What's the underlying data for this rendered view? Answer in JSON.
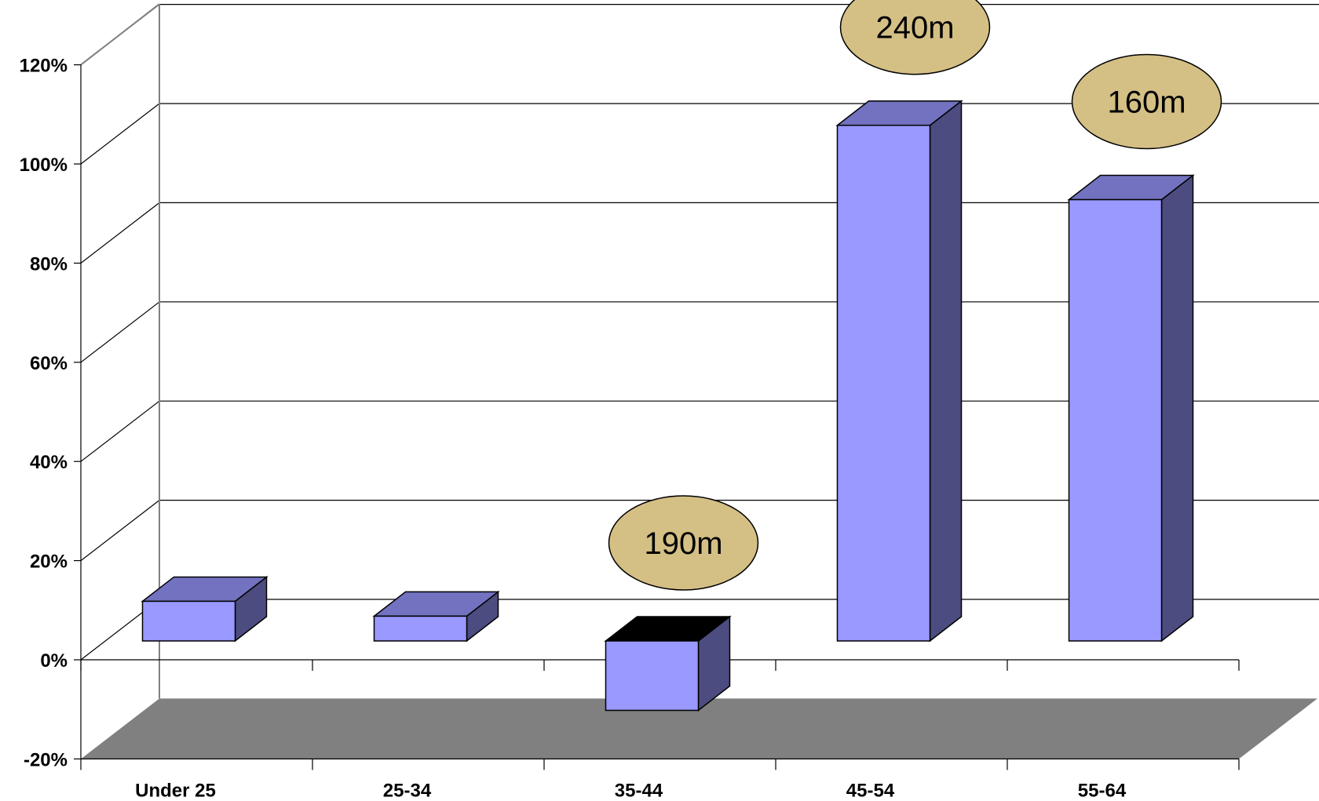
{
  "chart_data": {
    "type": "bar",
    "categories": [
      "Under 25",
      "25-34",
      "35-44",
      "45-54",
      "55-64"
    ],
    "values": [
      8,
      5,
      -14,
      104,
      89
    ],
    "callouts": [
      {
        "category_index": 2,
        "label": "190m"
      },
      {
        "category_index": 3,
        "label": "240m"
      },
      {
        "category_index": 4,
        "label": "160m"
      }
    ],
    "title": "",
    "xlabel": "",
    "ylabel": "",
    "ylim": [
      -20,
      120
    ],
    "yticks": [
      -20,
      0,
      20,
      40,
      60,
      80,
      100,
      120
    ],
    "ytick_labels": [
      "-20%",
      "0%",
      "20%",
      "40%",
      "60%",
      "80%",
      "100%",
      "120%"
    ],
    "grid": true,
    "three_d": true,
    "colors": {
      "bar_front": "#9999ff",
      "bar_top": "#7272c0",
      "bar_side": "#4c4c80",
      "negative_bar_top": "#000000",
      "floor": "#808080",
      "gridline": "#000000",
      "wall": "#ffffff",
      "callout_fill": "#d4bf85"
    }
  }
}
